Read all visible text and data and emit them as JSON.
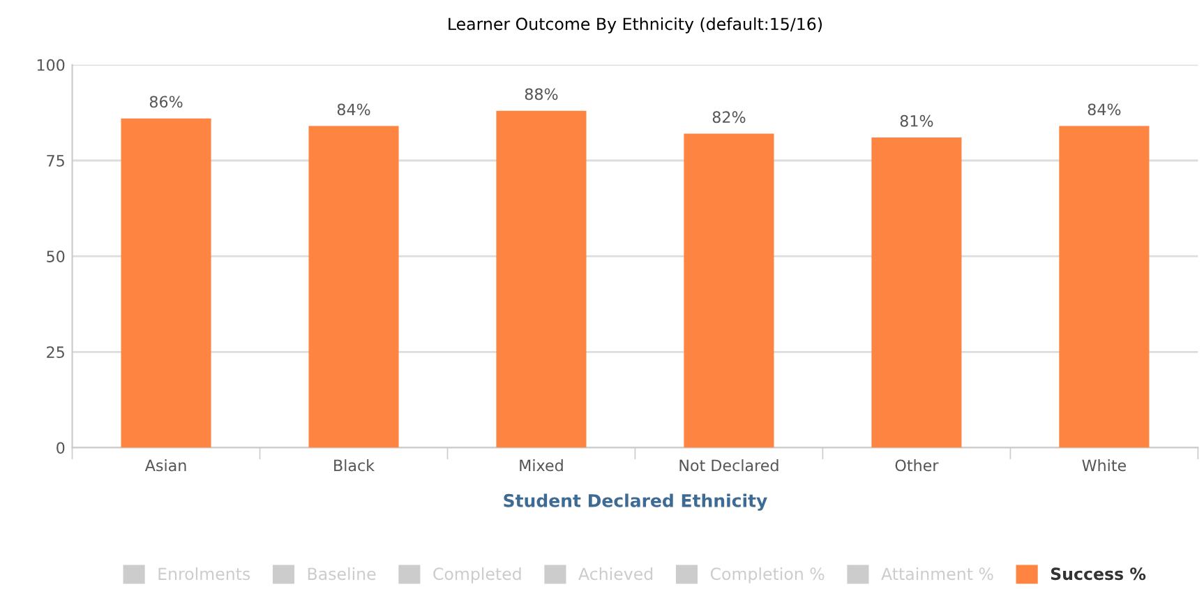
{
  "chart_data": {
    "type": "bar",
    "title": "Learner Outcome By Ethnicity (default:15/16)",
    "xlabel": "Student Declared Ethnicity",
    "categories": [
      "Asian",
      "Black",
      "Mixed",
      "Not Declared",
      "Other",
      "White"
    ],
    "series": [
      {
        "name": "Enrolments",
        "color": "#cccccc",
        "values": [
          null,
          null,
          null,
          null,
          null,
          null
        ]
      },
      {
        "name": "Baseline",
        "color": "#cccccc",
        "values": [
          null,
          null,
          null,
          null,
          null,
          null
        ]
      },
      {
        "name": "Completed",
        "color": "#cccccc",
        "values": [
          null,
          null,
          null,
          null,
          null,
          null
        ]
      },
      {
        "name": "Achieved",
        "color": "#cccccc",
        "values": [
          null,
          null,
          null,
          null,
          null,
          null
        ]
      },
      {
        "name": "Completion %",
        "color": "#cccccc",
        "values": [
          null,
          null,
          null,
          null,
          null,
          null
        ]
      },
      {
        "name": "Attainment %",
        "color": "#cccccc",
        "values": [
          null,
          null,
          null,
          null,
          null,
          null
        ]
      },
      {
        "name": "Success %",
        "color": "#fd8441",
        "values": [
          86,
          84,
          88,
          82,
          81,
          84
        ],
        "value_labels": [
          "86%",
          "84%",
          "88%",
          "82%",
          "81%",
          "84%"
        ]
      }
    ],
    "ylim": [
      0,
      100
    ],
    "yticks": [
      0,
      25,
      50,
      75,
      100
    ],
    "grid": "y",
    "legend": "bottom"
  }
}
